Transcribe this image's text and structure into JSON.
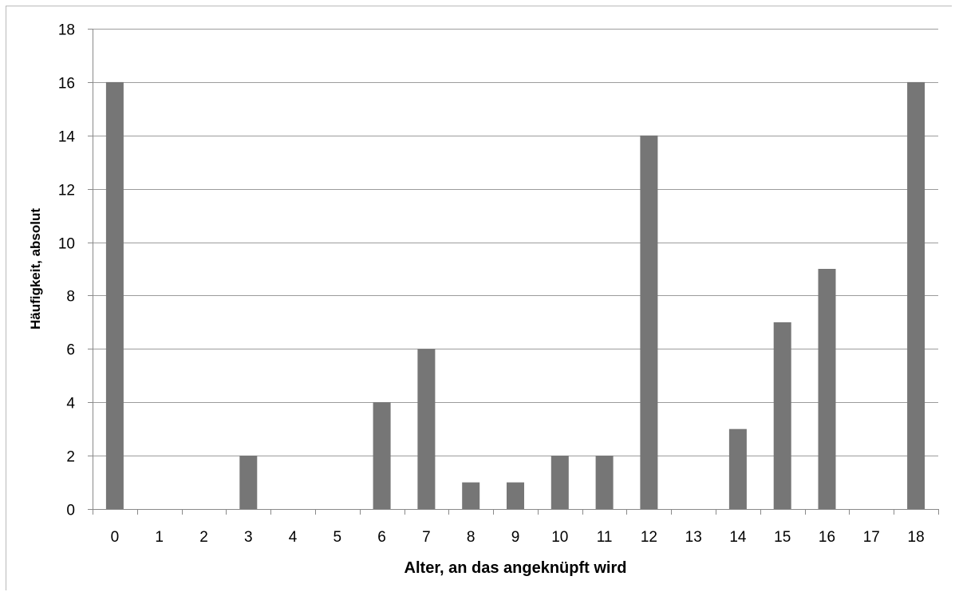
{
  "chart_data": {
    "type": "bar",
    "title": "",
    "xlabel": "Alter, an das angeknüpft wird",
    "ylabel": "Häufigkeit, absolut",
    "categories": [
      "0",
      "1",
      "2",
      "3",
      "4",
      "5",
      "6",
      "7",
      "8",
      "9",
      "10",
      "11",
      "12",
      "13",
      "14",
      "15",
      "16",
      "17",
      "18"
    ],
    "values": [
      16,
      0,
      0,
      2,
      0,
      0,
      4,
      6,
      1,
      1,
      2,
      2,
      14,
      0,
      3,
      7,
      9,
      0,
      16
    ],
    "ylim": [
      0,
      18
    ],
    "yticks": [
      0,
      2,
      4,
      6,
      8,
      10,
      12,
      14,
      16,
      18
    ],
    "grid": true,
    "legend": "none",
    "colors": {
      "bar": "#767676",
      "grid": "#9c9c9c",
      "axis": "#8a8a8a"
    }
  }
}
